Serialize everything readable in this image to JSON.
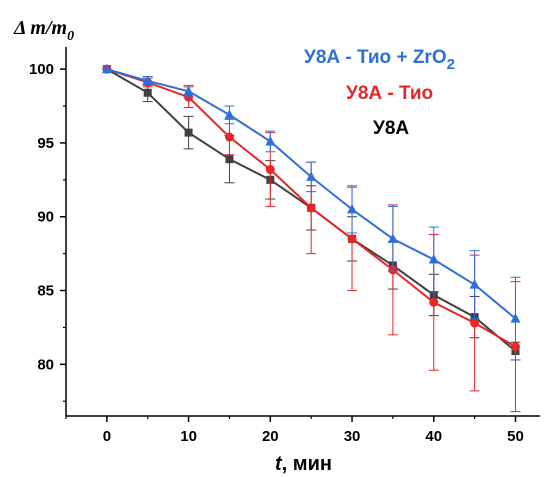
{
  "chart_data": {
    "type": "line",
    "ylabel_main": "Δ m/m",
    "ylabel_sub": "0",
    "xlabel_var": "t",
    "xlabel_rest": ", мин",
    "x": [
      0,
      5,
      10,
      15,
      20,
      25,
      30,
      35,
      40,
      45,
      50
    ],
    "xlim": [
      -5,
      53
    ],
    "ylim": [
      76.5,
      101.5
    ],
    "xticks": [
      0,
      10,
      20,
      30,
      40,
      50
    ],
    "yticks": [
      80,
      85,
      90,
      95,
      100
    ],
    "grid": false,
    "legend_position": "top-right",
    "series": [
      {
        "name": "У8А",
        "color": "#404040",
        "marker": "square",
        "values": [
          100,
          98.4,
          95.7,
          93.9,
          92.5,
          90.6,
          88.5,
          86.7,
          84.7,
          83.2,
          80.9
        ],
        "errors": [
          0,
          0.6,
          1.1,
          1.6,
          1.3,
          1.5,
          1.5,
          1.6,
          1.4,
          1.4,
          0.6
        ]
      },
      {
        "name": "У8А - Тио",
        "color": "#e8262a",
        "marker": "circle",
        "values": [
          100,
          99.1,
          98.1,
          95.4,
          93.2,
          90.6,
          88.5,
          86.4,
          84.2,
          82.8,
          81.2
        ],
        "errors": [
          0,
          0.3,
          0.7,
          1.2,
          2.5,
          3.1,
          3.5,
          4.4,
          4.6,
          4.6,
          4.4
        ]
      },
      {
        "name": "У8А - Тио + ZrO",
        "name_sub": "2",
        "color": "#2f6fdc",
        "marker": "triangle",
        "values": [
          100,
          99.2,
          98.5,
          96.9,
          95.1,
          92.7,
          90.5,
          88.5,
          87.1,
          85.4,
          83.1
        ],
        "errors": [
          0,
          0.3,
          0.4,
          0.6,
          0.7,
          1.0,
          1.6,
          2.2,
          2.2,
          2.3,
          2.8
        ]
      }
    ]
  }
}
